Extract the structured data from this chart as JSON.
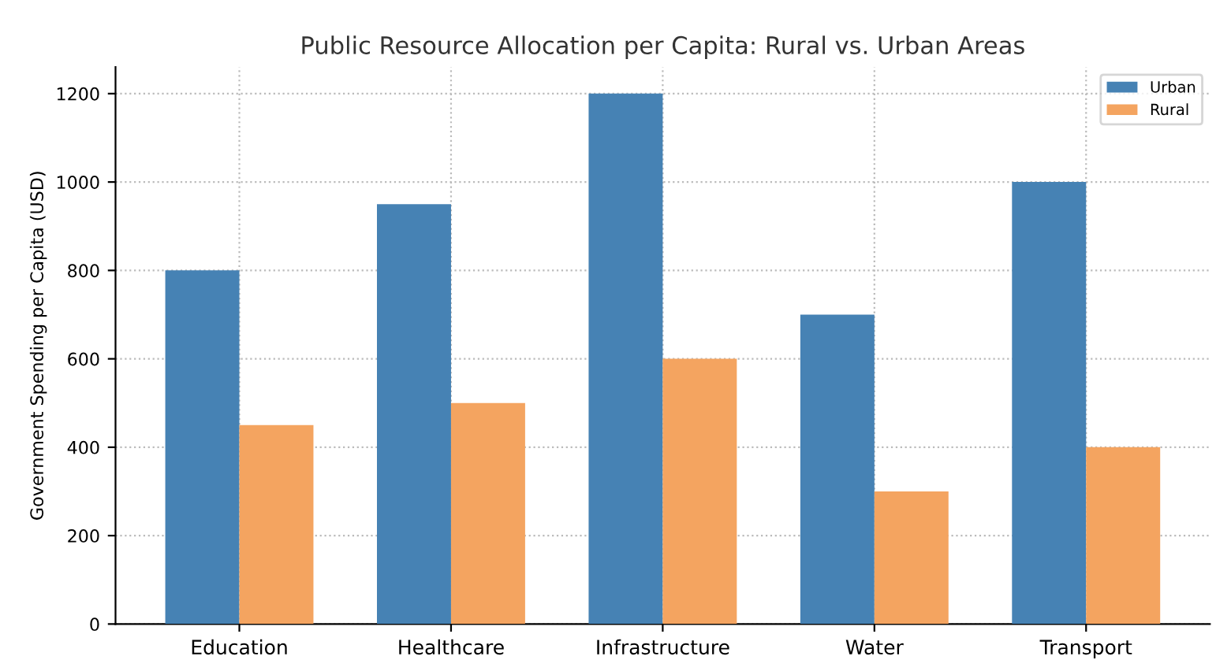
{
  "chart_data": {
    "type": "bar",
    "title": "Public Resource Allocation per Capita: Rural vs. Urban Areas",
    "ylabel": "Government Spending per Capita (USD)",
    "categories": [
      "Education",
      "Healthcare",
      "Infrastructure",
      "Water",
      "Transport"
    ],
    "series": [
      {
        "name": "Urban",
        "color": "#4682b4",
        "values": [
          800,
          950,
          1200,
          700,
          1000
        ]
      },
      {
        "name": "Rural",
        "color": "#f4a460",
        "values": [
          450,
          500,
          600,
          300,
          400
        ]
      }
    ],
    "ylim": [
      0,
      1260
    ],
    "yticks": [
      0,
      200,
      400,
      600,
      800,
      1000,
      1200
    ],
    "grid": true,
    "legend": "top right"
  }
}
